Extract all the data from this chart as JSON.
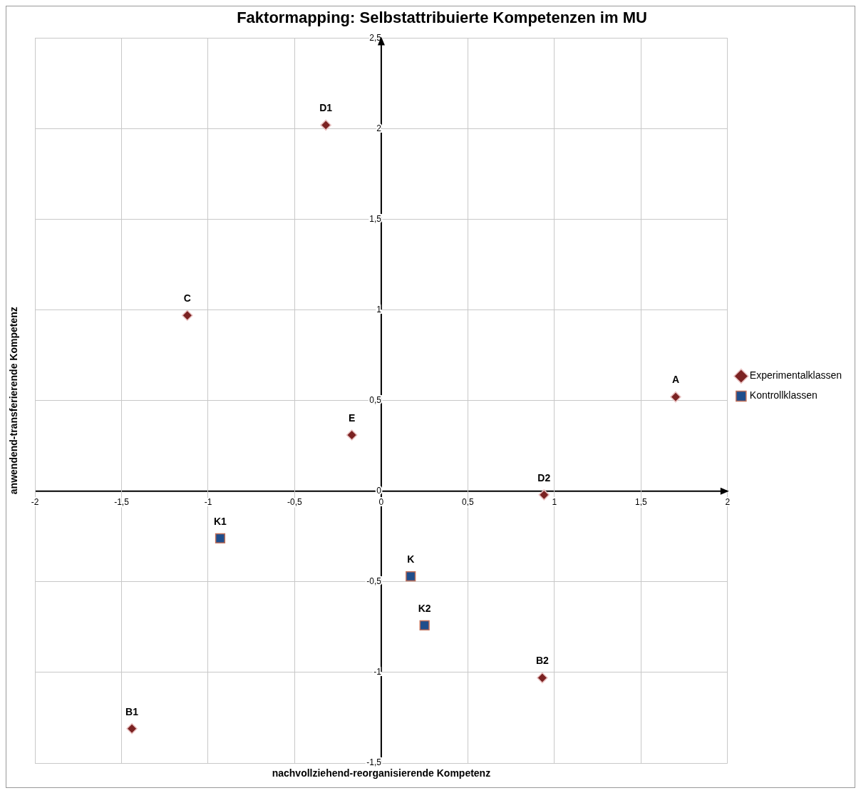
{
  "chart_data": {
    "type": "scatter",
    "title": "Faktormapping: Selbstattribuierte Kompetenzen im MU",
    "xlabel": "nachvollziehend-reorganisierende Kompetenz",
    "ylabel": "anwendend-transferierende Kompetenz",
    "series": [
      {
        "name": "Experimentalklassen",
        "color": "#7b2222",
        "marker": "diamond",
        "x": [
          -0.32,
          -1.12,
          1.7,
          -0.17,
          0.94,
          0.93,
          -1.44
        ],
        "values": [
          2.02,
          0.97,
          0.52,
          0.31,
          -0.02,
          -1.03,
          -1.31
        ]
      },
      {
        "name": "Kontrollklassen",
        "color": "#1f4e8c",
        "marker": "square",
        "x": [
          -0.93,
          0.17,
          0.25
        ],
        "values": [
          -0.26,
          -0.47,
          -0.74
        ]
      }
    ],
    "annotations": [
      {
        "text": "D1",
        "x": -0.32,
        "y": 2.02
      },
      {
        "text": "C",
        "x": -1.12,
        "y": 0.97
      },
      {
        "text": "A",
        "x": 1.7,
        "y": 0.52
      },
      {
        "text": "E",
        "x": -0.17,
        "y": 0.31
      },
      {
        "text": "D2",
        "x": 0.94,
        "y": -0.02
      },
      {
        "text": "B2",
        "x": 0.93,
        "y": -1.03
      },
      {
        "text": "B1",
        "x": -1.44,
        "y": -1.31
      },
      {
        "text": "K1",
        "x": -0.93,
        "y": -0.26
      },
      {
        "text": "K",
        "x": 0.17,
        "y": -0.47
      },
      {
        "text": "K2",
        "x": 0.25,
        "y": -0.74
      }
    ],
    "xlim": [
      -2,
      2
    ],
    "xticks": [
      {
        "value": -2,
        "label": "-2"
      },
      {
        "value": -1.5,
        "label": "-1,5"
      },
      {
        "value": -1,
        "label": "-1"
      },
      {
        "value": -0.5,
        "label": "-0,5"
      },
      {
        "value": 0,
        "label": "0"
      },
      {
        "value": 0.5,
        "label": "0,5"
      },
      {
        "value": 1,
        "label": "1"
      },
      {
        "value": 1.5,
        "label": "1,5"
      },
      {
        "value": 2,
        "label": "2"
      }
    ],
    "ylim": [
      -1.5,
      2.5
    ],
    "yticks": [
      {
        "value": -1.5,
        "label": "-1,5"
      },
      {
        "value": -1,
        "label": "-1"
      },
      {
        "value": -0.5,
        "label": "-0,5"
      },
      {
        "value": 0,
        "label": "0"
      },
      {
        "value": 0.5,
        "label": "0,5"
      },
      {
        "value": 1,
        "label": "1"
      },
      {
        "value": 1.5,
        "label": "1,5"
      },
      {
        "value": 2,
        "label": "2"
      },
      {
        "value": 2.5,
        "label": "2,5"
      }
    ],
    "grid": true,
    "legend": "right"
  }
}
